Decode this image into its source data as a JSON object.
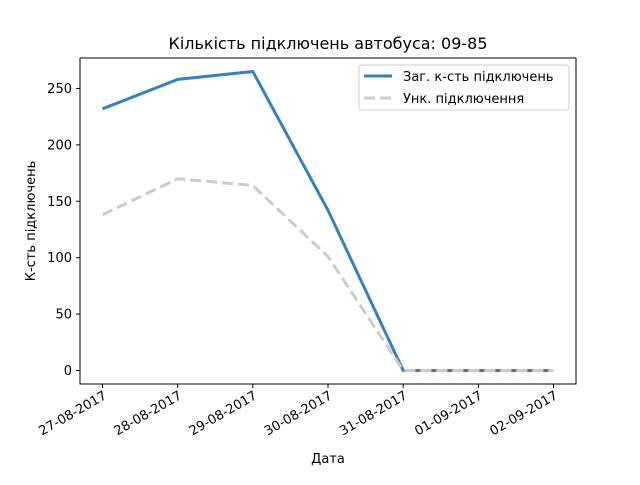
{
  "chart_data": {
    "type": "line",
    "title": "Кількість підключень автобуса: 09-85",
    "xlabel": "Дата",
    "ylabel": "К-сть підключень",
    "categories": [
      "27-08-2017",
      "28-08-2017",
      "29-08-2017",
      "30-08-2017",
      "31-08-2017",
      "01-09-2017",
      "02-09-2017"
    ],
    "ylim": [
      -12,
      277
    ],
    "yticks": [
      0,
      50,
      100,
      150,
      200,
      250
    ],
    "grid": false,
    "legend_position": "top-right",
    "series": [
      {
        "name": "Заг. к-сть підключень",
        "values": [
          232,
          258,
          265,
          142,
          0,
          0,
          0
        ],
        "color": "#3182bd",
        "style": "solid"
      },
      {
        "name": "Унк. підключення",
        "values": [
          138,
          170,
          164,
          101,
          0,
          0,
          0
        ],
        "color": "#cccccc",
        "style": "dashed"
      }
    ]
  }
}
